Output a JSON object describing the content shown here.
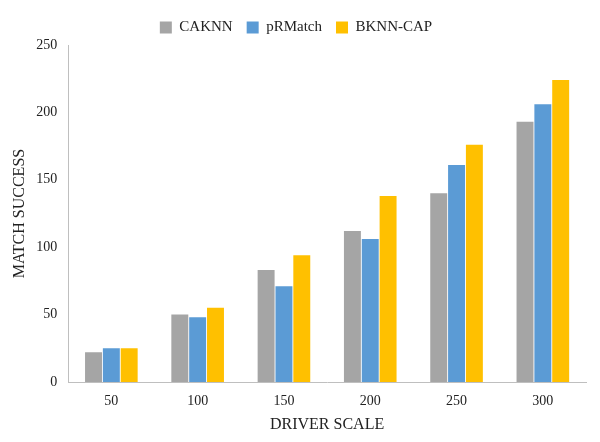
{
  "chart_data": {
    "type": "bar",
    "x_label": "DRIVER SCALE",
    "y_label": "MATCH SUCCESS",
    "categories": [
      "50",
      "100",
      "150",
      "200",
      "250",
      "300"
    ],
    "series": [
      {
        "name": "CAKNN",
        "color": "#a5a5a5",
        "values": [
          22,
          50,
          83,
          112,
          140,
          193
        ]
      },
      {
        "name": "pRMatch",
        "color": "#5b9bd5",
        "values": [
          25,
          48,
          71,
          106,
          161,
          206
        ]
      },
      {
        "name": "BKNN-CAP",
        "color": "#ffc000",
        "values": [
          25,
          55,
          94,
          138,
          176,
          224
        ]
      }
    ],
    "ylim": [
      0,
      250
    ],
    "yticks": [
      0,
      50,
      100,
      150,
      200,
      250
    ],
    "grid": false,
    "legend": "top"
  }
}
